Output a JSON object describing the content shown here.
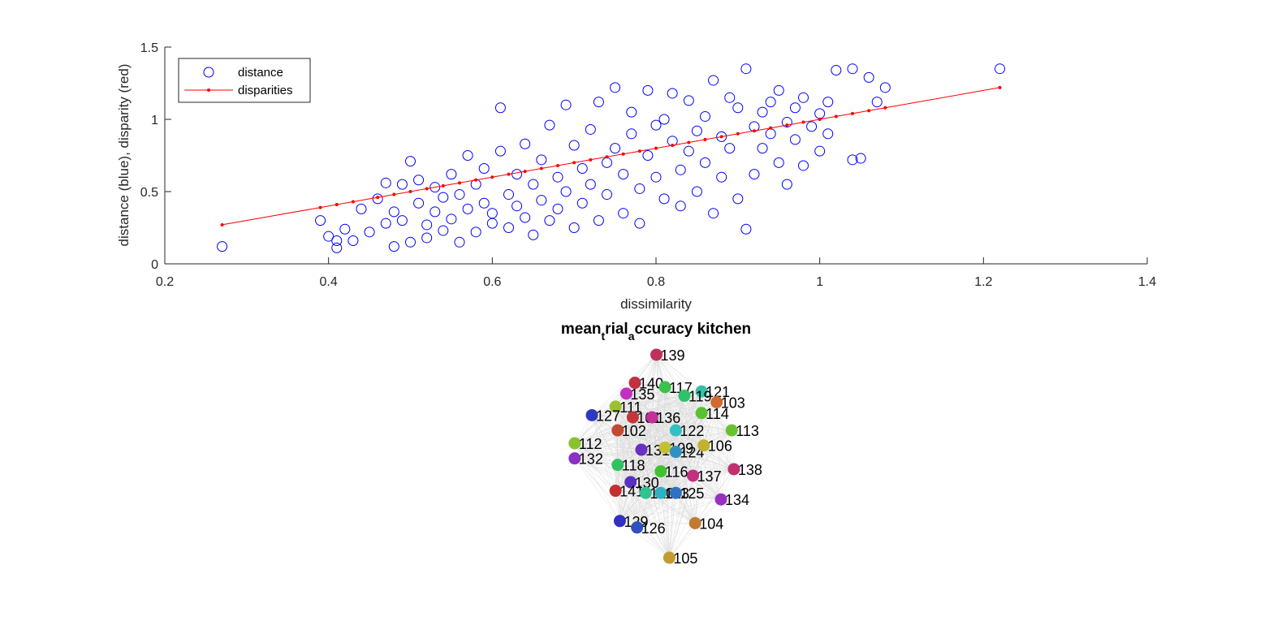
{
  "chart_data": [
    {
      "type": "scatter",
      "xlabel": "dissimilarity",
      "ylabel": "distance (blue), disparity (red)",
      "xlim": [
        0.2,
        1.4
      ],
      "ylim": [
        0,
        1.5
      ],
      "xticks": [
        "0.2",
        "0.4",
        "0.6",
        "0.8",
        "1",
        "1.2",
        "1.4"
      ],
      "yticks": [
        "0",
        "0.5",
        "1",
        "1.5"
      ],
      "grid": false,
      "legend_position": "top-left",
      "series": [
        {
          "name": "distance",
          "marker": "circle-open",
          "color": "#0000ff",
          "points": [
            [
              0.27,
              0.12
            ],
            [
              0.39,
              0.3
            ],
            [
              0.4,
              0.19
            ],
            [
              0.41,
              0.16
            ],
            [
              0.41,
              0.11
            ],
            [
              0.42,
              0.24
            ],
            [
              0.43,
              0.16
            ],
            [
              0.44,
              0.38
            ],
            [
              0.45,
              0.22
            ],
            [
              0.46,
              0.45
            ],
            [
              0.47,
              0.56
            ],
            [
              0.47,
              0.28
            ],
            [
              0.48,
              0.36
            ],
            [
              0.48,
              0.12
            ],
            [
              0.49,
              0.55
            ],
            [
              0.49,
              0.3
            ],
            [
              0.5,
              0.15
            ],
            [
              0.5,
              0.71
            ],
            [
              0.51,
              0.58
            ],
            [
              0.51,
              0.42
            ],
            [
              0.52,
              0.27
            ],
            [
              0.52,
              0.18
            ],
            [
              0.53,
              0.36
            ],
            [
              0.53,
              0.53
            ],
            [
              0.54,
              0.23
            ],
            [
              0.54,
              0.46
            ],
            [
              0.55,
              0.62
            ],
            [
              0.55,
              0.31
            ],
            [
              0.56,
              0.15
            ],
            [
              0.56,
              0.48
            ],
            [
              0.57,
              0.75
            ],
            [
              0.57,
              0.38
            ],
            [
              0.58,
              0.22
            ],
            [
              0.58,
              0.55
            ],
            [
              0.59,
              0.66
            ],
            [
              0.59,
              0.42
            ],
            [
              0.6,
              0.28
            ],
            [
              0.6,
              0.35
            ],
            [
              0.61,
              0.78
            ],
            [
              0.61,
              1.08
            ],
            [
              0.62,
              0.48
            ],
            [
              0.62,
              0.25
            ],
            [
              0.63,
              0.62
            ],
            [
              0.63,
              0.4
            ],
            [
              0.64,
              0.83
            ],
            [
              0.64,
              0.32
            ],
            [
              0.65,
              0.55
            ],
            [
              0.65,
              0.2
            ],
            [
              0.66,
              0.72
            ],
            [
              0.66,
              0.44
            ],
            [
              0.67,
              0.96
            ],
            [
              0.67,
              0.3
            ],
            [
              0.68,
              0.6
            ],
            [
              0.68,
              0.38
            ],
            [
              0.69,
              1.1
            ],
            [
              0.69,
              0.5
            ],
            [
              0.7,
              0.25
            ],
            [
              0.7,
              0.82
            ],
            [
              0.71,
              0.66
            ],
            [
              0.71,
              0.42
            ],
            [
              0.72,
              0.93
            ],
            [
              0.72,
              0.55
            ],
            [
              0.73,
              0.3
            ],
            [
              0.73,
              1.12
            ],
            [
              0.74,
              0.7
            ],
            [
              0.74,
              0.48
            ],
            [
              0.75,
              1.22
            ],
            [
              0.75,
              0.8
            ],
            [
              0.76,
              0.35
            ],
            [
              0.76,
              0.62
            ],
            [
              0.77,
              1.05
            ],
            [
              0.77,
              0.9
            ],
            [
              0.78,
              0.52
            ],
            [
              0.78,
              0.28
            ],
            [
              0.79,
              1.2
            ],
            [
              0.79,
              0.75
            ],
            [
              0.8,
              0.6
            ],
            [
              0.8,
              0.96
            ],
            [
              0.81,
              0.45
            ],
            [
              0.81,
              1.0
            ],
            [
              0.82,
              0.85
            ],
            [
              0.82,
              1.18
            ],
            [
              0.83,
              0.65
            ],
            [
              0.83,
              0.4
            ],
            [
              0.84,
              1.13
            ],
            [
              0.84,
              0.78
            ],
            [
              0.85,
              0.92
            ],
            [
              0.85,
              0.5
            ],
            [
              0.86,
              1.02
            ],
            [
              0.86,
              0.7
            ],
            [
              0.87,
              1.27
            ],
            [
              0.87,
              0.35
            ],
            [
              0.88,
              0.88
            ],
            [
              0.88,
              0.6
            ],
            [
              0.89,
              1.15
            ],
            [
              0.89,
              0.8
            ],
            [
              0.9,
              1.08
            ],
            [
              0.9,
              0.45
            ],
            [
              0.91,
              1.35
            ],
            [
              0.91,
              0.24
            ],
            [
              0.92,
              0.95
            ],
            [
              0.92,
              0.62
            ],
            [
              0.93,
              1.05
            ],
            [
              0.93,
              0.8
            ],
            [
              0.94,
              0.9
            ],
            [
              0.94,
              1.12
            ],
            [
              0.95,
              0.7
            ],
            [
              0.95,
              1.2
            ],
            [
              0.96,
              0.98
            ],
            [
              0.96,
              0.55
            ],
            [
              0.97,
              1.08
            ],
            [
              0.97,
              0.86
            ],
            [
              0.98,
              1.15
            ],
            [
              0.98,
              0.68
            ],
            [
              0.99,
              0.95
            ],
            [
              1.0,
              1.04
            ],
            [
              1.0,
              0.78
            ],
            [
              1.01,
              1.12
            ],
            [
              1.01,
              0.9
            ],
            [
              1.02,
              1.34
            ],
            [
              1.04,
              1.35
            ],
            [
              1.04,
              0.72
            ],
            [
              1.05,
              0.73
            ],
            [
              1.06,
              1.29
            ],
            [
              1.07,
              1.12
            ],
            [
              1.08,
              1.22
            ],
            [
              1.22,
              1.35
            ]
          ]
        },
        {
          "name": "disparities",
          "marker": "line-dot",
          "color": "#ff0000",
          "points": [
            [
              0.27,
              0.27
            ],
            [
              0.39,
              0.39
            ],
            [
              0.41,
              0.41
            ],
            [
              0.43,
              0.43
            ],
            [
              0.46,
              0.46
            ],
            [
              0.48,
              0.48
            ],
            [
              0.5,
              0.5
            ],
            [
              0.52,
              0.52
            ],
            [
              0.54,
              0.54
            ],
            [
              0.56,
              0.56
            ],
            [
              0.58,
              0.58
            ],
            [
              0.6,
              0.6
            ],
            [
              0.62,
              0.62
            ],
            [
              0.64,
              0.64
            ],
            [
              0.66,
              0.66
            ],
            [
              0.68,
              0.68
            ],
            [
              0.7,
              0.7
            ],
            [
              0.72,
              0.72
            ],
            [
              0.74,
              0.74
            ],
            [
              0.76,
              0.76
            ],
            [
              0.78,
              0.78
            ],
            [
              0.8,
              0.8
            ],
            [
              0.82,
              0.82
            ],
            [
              0.84,
              0.84
            ],
            [
              0.86,
              0.86
            ],
            [
              0.88,
              0.88
            ],
            [
              0.9,
              0.9
            ],
            [
              0.92,
              0.92
            ],
            [
              0.94,
              0.94
            ],
            [
              0.96,
              0.96
            ],
            [
              0.98,
              0.98
            ],
            [
              1.0,
              1.0
            ],
            [
              1.02,
              1.02
            ],
            [
              1.04,
              1.04
            ],
            [
              1.06,
              1.06
            ],
            [
              1.08,
              1.08
            ],
            [
              1.22,
              1.22
            ]
          ]
        }
      ]
    },
    {
      "type": "network",
      "title_parts": [
        {
          "text": "mean",
          "sub": false
        },
        {
          "text": "t",
          "sub": true
        },
        {
          "text": "rial",
          "sub": false
        },
        {
          "text": "a",
          "sub": true
        },
        {
          "text": "ccuracy kitchen",
          "sub": false
        }
      ],
      "edge_color": "#d9d9d9",
      "nodes": [
        {
          "id": "139",
          "x": 0.5,
          "y": 0.97,
          "color": "#c2305a"
        },
        {
          "id": "140",
          "x": 0.4,
          "y": 0.84,
          "color": "#c23042"
        },
        {
          "id": "117",
          "x": 0.54,
          "y": 0.82,
          "color": "#3ac24a"
        },
        {
          "id": "121",
          "x": 0.71,
          "y": 0.8,
          "color": "#30c2a8"
        },
        {
          "id": "135",
          "x": 0.36,
          "y": 0.79,
          "color": "#c230c2"
        },
        {
          "id": "119",
          "x": 0.63,
          "y": 0.78,
          "color": "#30c26a"
        },
        {
          "id": "103",
          "x": 0.78,
          "y": 0.75,
          "color": "#d06a30"
        },
        {
          "id": "111",
          "x": 0.31,
          "y": 0.73,
          "color": "#9ac230"
        },
        {
          "id": "127",
          "x": 0.2,
          "y": 0.69,
          "color": "#3038c2"
        },
        {
          "id": "101",
          "x": 0.39,
          "y": 0.68,
          "color": "#c23838"
        },
        {
          "id": "136",
          "x": 0.48,
          "y": 0.68,
          "color": "#c2309a"
        },
        {
          "id": "114",
          "x": 0.71,
          "y": 0.7,
          "color": "#5ac230"
        },
        {
          "id": "102",
          "x": 0.32,
          "y": 0.62,
          "color": "#c24a30"
        },
        {
          "id": "122",
          "x": 0.59,
          "y": 0.62,
          "color": "#30c2c2"
        },
        {
          "id": "113",
          "x": 0.85,
          "y": 0.62,
          "color": "#6ac230"
        },
        {
          "id": "112",
          "x": 0.12,
          "y": 0.56,
          "color": "#8ac230"
        },
        {
          "id": "131",
          "x": 0.43,
          "y": 0.53,
          "color": "#6a30c2"
        },
        {
          "id": "109",
          "x": 0.54,
          "y": 0.54,
          "color": "#c2c230"
        },
        {
          "id": "124",
          "x": 0.59,
          "y": 0.52,
          "color": "#3090c2"
        },
        {
          "id": "106",
          "x": 0.72,
          "y": 0.55,
          "color": "#c2b030"
        },
        {
          "id": "132",
          "x": 0.12,
          "y": 0.49,
          "color": "#8a30c2"
        },
        {
          "id": "118",
          "x": 0.32,
          "y": 0.46,
          "color": "#30c260"
        },
        {
          "id": "116",
          "x": 0.52,
          "y": 0.43,
          "color": "#40c230"
        },
        {
          "id": "137",
          "x": 0.67,
          "y": 0.41,
          "color": "#c23080"
        },
        {
          "id": "138",
          "x": 0.86,
          "y": 0.44,
          "color": "#c23070"
        },
        {
          "id": "130",
          "x": 0.38,
          "y": 0.38,
          "color": "#5a30c2"
        },
        {
          "id": "141",
          "x": 0.31,
          "y": 0.34,
          "color": "#c23030"
        },
        {
          "id": "120",
          "x": 0.45,
          "y": 0.33,
          "color": "#30c290"
        },
        {
          "id": "123",
          "x": 0.52,
          "y": 0.33,
          "color": "#30b0c2"
        },
        {
          "id": "125",
          "x": 0.59,
          "y": 0.33,
          "color": "#3070c2"
        },
        {
          "id": "134",
          "x": 0.8,
          "y": 0.3,
          "color": "#9a30c2"
        },
        {
          "id": "129",
          "x": 0.33,
          "y": 0.2,
          "color": "#3030c2"
        },
        {
          "id": "126",
          "x": 0.41,
          "y": 0.17,
          "color": "#3050c2"
        },
        {
          "id": "104",
          "x": 0.68,
          "y": 0.19,
          "color": "#c27a30"
        },
        {
          "id": "105",
          "x": 0.56,
          "y": 0.03,
          "color": "#c29a30"
        }
      ]
    }
  ]
}
